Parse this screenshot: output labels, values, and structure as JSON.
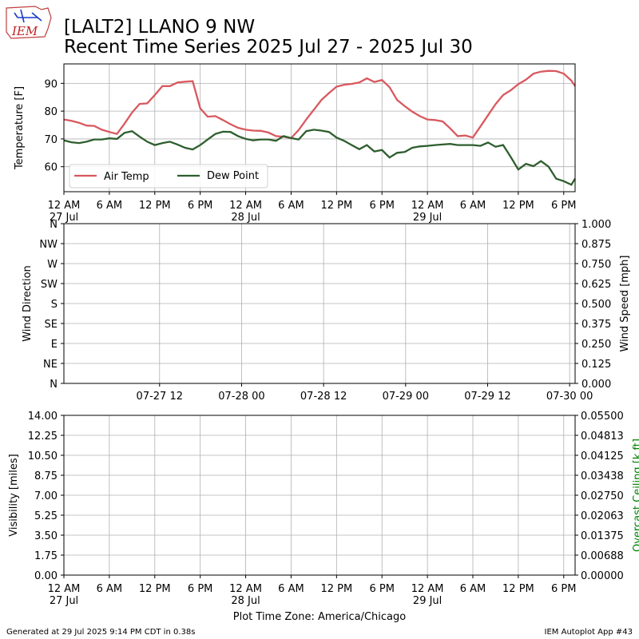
{
  "title": {
    "line1": "[LALT2] LLANO 9 NW",
    "line2": "Recent Time Series 2025 Jul 27 - 2025 Jul 30"
  },
  "logo": {
    "text": "IEM"
  },
  "footer": {
    "left": "Generated at 29 Jul 2025 9:14 PM CDT in 0.38s",
    "right": "IEM Autoplot App #43",
    "timezone": "Plot Time Zone: America/Chicago"
  },
  "colors": {
    "air_temp": "#d9585f",
    "dew_point": "#2e5e2e",
    "ceiling_label": "#008000",
    "grid": "#b0b0b0"
  },
  "time_axis": {
    "ticks": [
      {
        "h": 0,
        "l1": "12 AM",
        "l2": "27 Jul"
      },
      {
        "h": 6,
        "l1": "6 AM",
        "l2": ""
      },
      {
        "h": 12,
        "l1": "12 PM",
        "l2": ""
      },
      {
        "h": 18,
        "l1": "6 PM",
        "l2": ""
      },
      {
        "h": 24,
        "l1": "12 AM",
        "l2": "28 Jul"
      },
      {
        "h": 30,
        "l1": "6 AM",
        "l2": ""
      },
      {
        "h": 36,
        "l1": "12 PM",
        "l2": ""
      },
      {
        "h": 42,
        "l1": "6 PM",
        "l2": ""
      },
      {
        "h": 48,
        "l1": "12 AM",
        "l2": "29 Jul"
      },
      {
        "h": 54,
        "l1": "6 AM",
        "l2": ""
      },
      {
        "h": 60,
        "l1": "12 PM",
        "l2": ""
      },
      {
        "h": 66,
        "l1": "6 PM",
        "l2": ""
      }
    ]
  },
  "chart_data": [
    {
      "type": "line",
      "ylabel": "Temperature [F]",
      "ylim": [
        51,
        97
      ],
      "yticks": [
        60,
        70,
        80,
        90
      ],
      "xlim_hours": [
        0,
        67.5
      ],
      "grid": true,
      "legend": "lower-left",
      "x_unit": "hours since 2025-07-27 00:00",
      "series": [
        {
          "name": "Air Temp",
          "x": [
            0,
            1,
            2,
            3,
            4,
            5,
            6,
            7,
            8,
            9,
            10,
            11,
            12,
            13,
            14,
            15,
            16,
            17,
            18,
            19,
            20,
            21,
            22,
            23,
            24,
            25,
            26,
            27,
            28,
            29,
            30,
            31,
            32,
            33,
            34,
            35,
            36,
            37,
            38,
            39,
            40,
            41,
            42,
            43,
            44,
            45,
            46,
            47,
            48,
            49,
            50,
            51,
            52,
            53,
            54,
            55,
            56,
            57,
            58,
            59,
            60,
            61,
            62,
            63,
            64,
            65,
            66,
            67,
            67.5
          ],
          "values": [
            77,
            76.5,
            75.8,
            74.8,
            74.7,
            73.3,
            72.5,
            71.8,
            75.5,
            79.5,
            82.6,
            82.8,
            85.8,
            89,
            89,
            90.3,
            90.6,
            90.8,
            81,
            78,
            78.2,
            76.8,
            75.3,
            74,
            73.3,
            73,
            72.9,
            72.3,
            71,
            70.8,
            70.3,
            73.2,
            77,
            80.5,
            84,
            86.5,
            88.8,
            89.5,
            89.8,
            90.3,
            91.8,
            90.5,
            91.2,
            88.6,
            84,
            81.8,
            79.8,
            78.2,
            77,
            76.8,
            76.3,
            73.8,
            71,
            71.2,
            70.5,
            74.5,
            78.5,
            82.5,
            85.8,
            87.5,
            89.7,
            91.3,
            93.5,
            94.2,
            94.5,
            94.4,
            93.5,
            91,
            89
          ]
        },
        {
          "name": "Dew Point",
          "x": [
            0,
            1,
            2,
            3,
            4,
            5,
            6,
            7,
            8,
            9,
            10,
            11,
            12,
            13,
            14,
            15,
            16,
            17,
            18,
            19,
            20,
            21,
            22,
            23,
            24,
            25,
            26,
            27,
            28,
            29,
            30,
            31,
            32,
            33,
            34,
            35,
            36,
            37,
            38,
            39,
            40,
            41,
            42,
            43,
            44,
            45,
            46,
            47,
            48,
            49,
            50,
            51,
            52,
            53,
            54,
            55,
            56,
            57,
            58,
            59,
            60,
            61,
            62,
            63,
            64,
            65,
            66,
            67,
            67.5
          ],
          "values": [
            69.5,
            68.8,
            68.5,
            69,
            69.8,
            69.8,
            70.2,
            70,
            72.2,
            72.8,
            70.8,
            69,
            67.8,
            68.5,
            69,
            68,
            66.8,
            66.2,
            67.8,
            69.8,
            71.8,
            72.6,
            72.5,
            71,
            70,
            69.5,
            69.8,
            69.8,
            69.3,
            71,
            70.3,
            69.8,
            72.8,
            73.3,
            73,
            72.5,
            70.5,
            69.3,
            67.8,
            66.3,
            67.8,
            65.5,
            66,
            63.3,
            65,
            65.3,
            66.8,
            67.3,
            67.5,
            67.8,
            68,
            68.2,
            67.8,
            67.8,
            67.8,
            67.5,
            68.7,
            67.2,
            67.8,
            63.5,
            59,
            61,
            60.2,
            62,
            60,
            55.7,
            54.8,
            53.5,
            55.7
          ]
        }
      ]
    },
    {
      "type": "scatter",
      "ylabel": "Wind Direction",
      "y2label": "Wind Speed [mph]",
      "yticks": [
        "N",
        "NE",
        "E",
        "SE",
        "S",
        "SW",
        "W",
        "NW",
        "N"
      ],
      "y2ticks": [
        "0.000",
        "0.125",
        "0.250",
        "0.375",
        "0.500",
        "0.625",
        "0.750",
        "0.875",
        "1.000"
      ],
      "xticks": [
        {
          "h": 12,
          "label": "07-27 12"
        },
        {
          "h": 24,
          "label": "07-28 00"
        },
        {
          "h": 36,
          "label": "07-28 12"
        },
        {
          "h": 48,
          "label": "07-29 00"
        },
        {
          "h": 60,
          "label": "07-29 12"
        },
        {
          "h": 72,
          "label": "07-30 00"
        }
      ],
      "xlim_hours": [
        -2,
        72.8
      ],
      "grid": true,
      "series": []
    },
    {
      "type": "line",
      "ylabel": "Visibility [miles]",
      "y2label": "Overcast Ceiling [k ft]",
      "yticks": [
        "0.00",
        "1.75",
        "3.50",
        "5.25",
        "7.00",
        "8.75",
        "10.50",
        "12.25",
        "14.00"
      ],
      "y2ticks": [
        "0.00000",
        "0.00688",
        "0.01375",
        "0.02063",
        "0.02750",
        "0.03438",
        "0.04125",
        "0.04813",
        "0.05500"
      ],
      "ylim": [
        0,
        14
      ],
      "xlim_hours": [
        0,
        67.5
      ],
      "grid": true,
      "series": []
    }
  ]
}
